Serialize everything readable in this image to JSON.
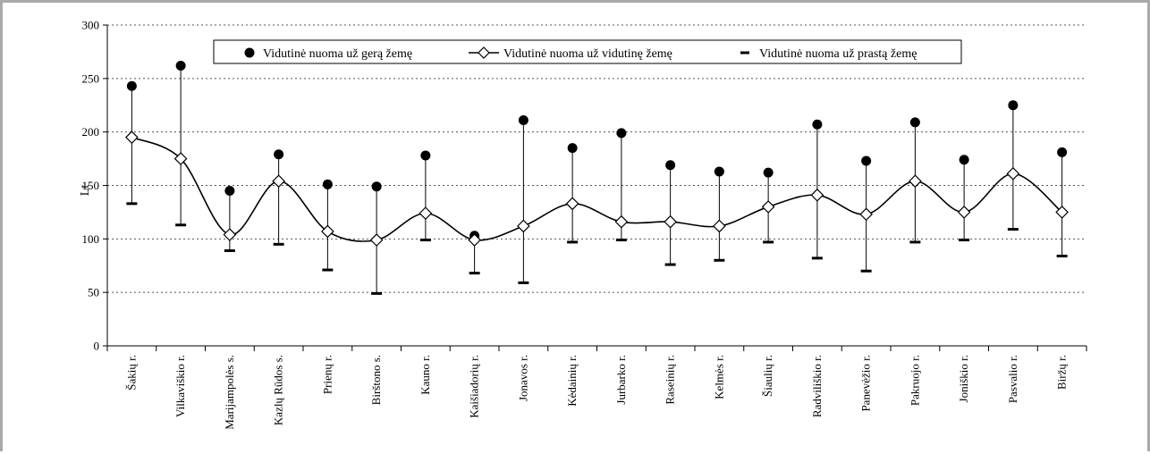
{
  "chart_data": {
    "type": "line",
    "ylabel": "Lt",
    "xlabel": "",
    "ylim": [
      0,
      300
    ],
    "yticks": [
      0,
      50,
      100,
      150,
      200,
      250,
      300
    ],
    "grid": "horizontal-dotted",
    "legend_placement": "top-center",
    "categories": [
      "Šakių r.",
      "Vilkaviškio r.",
      "Marijampolės s.",
      "Kazlų Rūdos s.",
      "Prienų r.",
      "Birštono s.",
      "Kauno r.",
      "Kaišiadorių r.",
      "Jonavos r.",
      "Kėdainių r.",
      "Jurbarko r.",
      "Raseinių r.",
      "Kelmės r.",
      "Šiaulių r.",
      "Radviliškio r.",
      "Panevėžio r.",
      "Pakruojo r.",
      "Joniškio r.",
      "Pasvalio r.",
      "Biržų r."
    ],
    "series": [
      {
        "name": "Vidutinė nuoma už gerą žemę",
        "marker": "circle",
        "values": [
          243,
          262,
          145,
          179,
          151,
          149,
          178,
          103,
          211,
          185,
          199,
          169,
          163,
          162,
          207,
          173,
          209,
          174,
          225,
          181
        ]
      },
      {
        "name": "Vidutinė nuoma už vidutinę žemę",
        "marker": "diamond",
        "values": [
          195,
          175,
          104,
          154,
          107,
          99,
          124,
          99,
          112,
          133,
          116,
          116,
          112,
          130,
          141,
          123,
          154,
          125,
          161,
          125
        ]
      },
      {
        "name": "Vidutinė nuoma už prastą žemę",
        "marker": "dash",
        "values": [
          133,
          113,
          89,
          95,
          71,
          49,
          99,
          68,
          59,
          97,
          99,
          76,
          80,
          97,
          82,
          70,
          97,
          99,
          109,
          84
        ]
      }
    ],
    "colors": {
      "line": "#000000",
      "grid": "#555555",
      "marker_fill_diamond": "#ffffff",
      "axis": "#000000"
    }
  }
}
